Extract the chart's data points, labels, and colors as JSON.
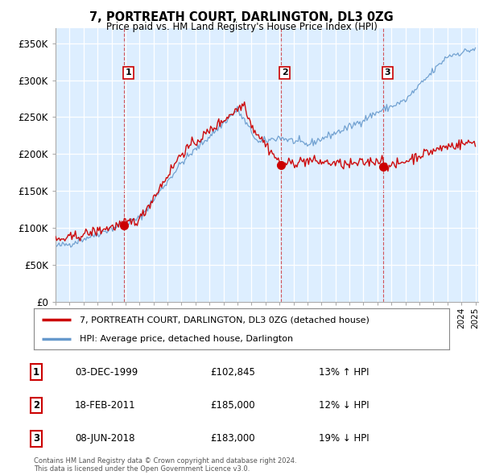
{
  "title": "7, PORTREATH COURT, DARLINGTON, DL3 0ZG",
  "subtitle": "Price paid vs. HM Land Registry's House Price Index (HPI)",
  "ylim": [
    0,
    370000
  ],
  "yticks": [
    0,
    50000,
    100000,
    150000,
    200000,
    250000,
    300000,
    350000
  ],
  "ytick_labels": [
    "£0",
    "£50K",
    "£100K",
    "£150K",
    "£200K",
    "£250K",
    "£300K",
    "£350K"
  ],
  "sale_prices": [
    102845,
    185000,
    183000
  ],
  "sale_labels": [
    "1",
    "2",
    "3"
  ],
  "sale_info": [
    {
      "num": "1",
      "date": "03-DEC-1999",
      "price": "£102,845",
      "hpi": "13% ↑ HPI"
    },
    {
      "num": "2",
      "date": "18-FEB-2011",
      "price": "£185,000",
      "hpi": "12% ↓ HPI"
    },
    {
      "num": "3",
      "date": "08-JUN-2018",
      "price": "£183,000",
      "hpi": "19% ↓ HPI"
    }
  ],
  "legend_line1": "7, PORTREATH COURT, DARLINGTON, DL3 0ZG (detached house)",
  "legend_line2": "HPI: Average price, detached house, Darlington",
  "footer": "Contains HM Land Registry data © Crown copyright and database right 2024.\nThis data is licensed under the Open Government Licence v3.0.",
  "line_color_red": "#cc0000",
  "line_color_blue": "#6699cc",
  "bg_color": "#ddeeff"
}
